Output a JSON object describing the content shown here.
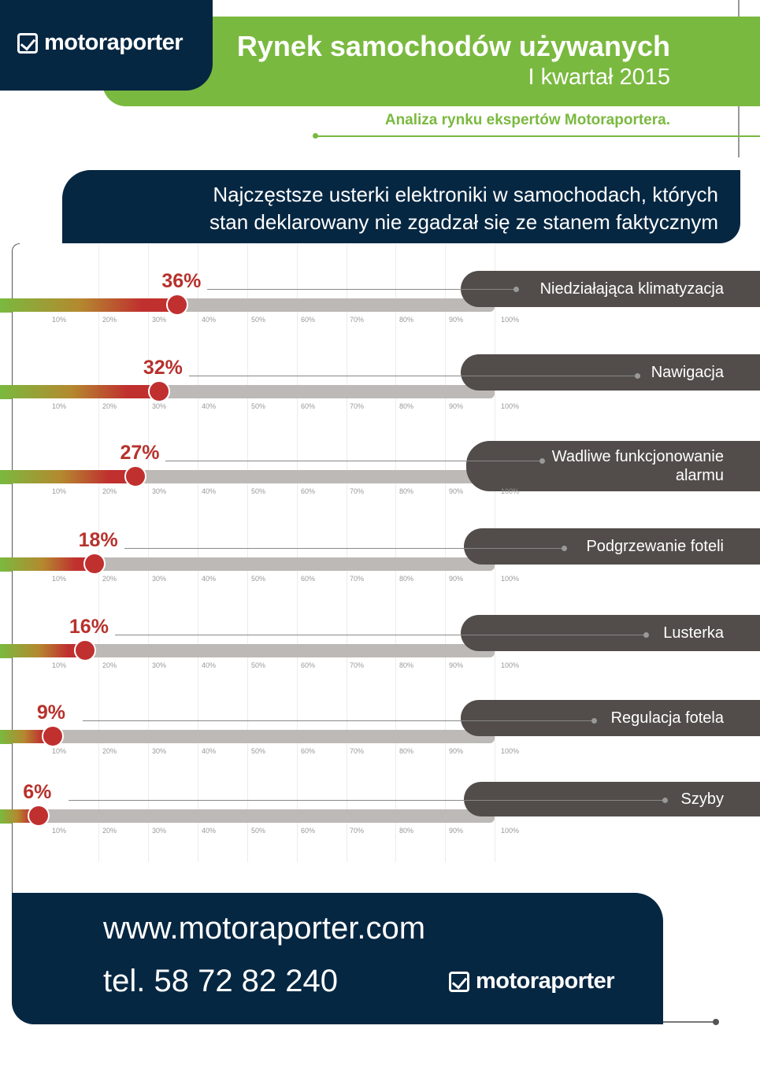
{
  "brand": "motoraporter",
  "header": {
    "title": "Rynek samochodów używanych",
    "subtitle": "I kwartał 2015",
    "analysis": "Analiza rynku ekspertów Motoraportera."
  },
  "colors": {
    "navy": "#062742",
    "green": "#7ab93f",
    "red": "#c0302f",
    "pill": "#524d4a",
    "track": "#bdb9b6"
  },
  "chart_data": {
    "type": "bar",
    "title_lines": [
      "Najczęstsze usterki elektroniki w samochodach, których",
      "stan deklarowany nie zgadzał się ze stanem faktycznym"
    ],
    "categories": [
      "Niedziałająca klimatyzacja",
      "Nawigacja",
      "Wadliwe funkcjonowanie alarmu",
      "Podgrzewanie foteli",
      "Lusterka",
      "Regulacja fotela",
      "Szyby"
    ],
    "values": [
      36,
      32,
      27,
      18,
      16,
      9,
      6
    ],
    "value_labels": [
      "36%",
      "32%",
      "27%",
      "18%",
      "16%",
      "9%",
      "6%"
    ],
    "tick_labels": [
      "10%",
      "20%",
      "30%",
      "40%",
      "50%",
      "60%",
      "70%",
      "80%",
      "90%",
      "100%"
    ],
    "xlim": [
      0,
      100
    ],
    "orientation": "horizontal",
    "grid": true
  },
  "footer": {
    "url": "www.motoraporter.com",
    "tel": "tel. 58 72 82 240"
  }
}
